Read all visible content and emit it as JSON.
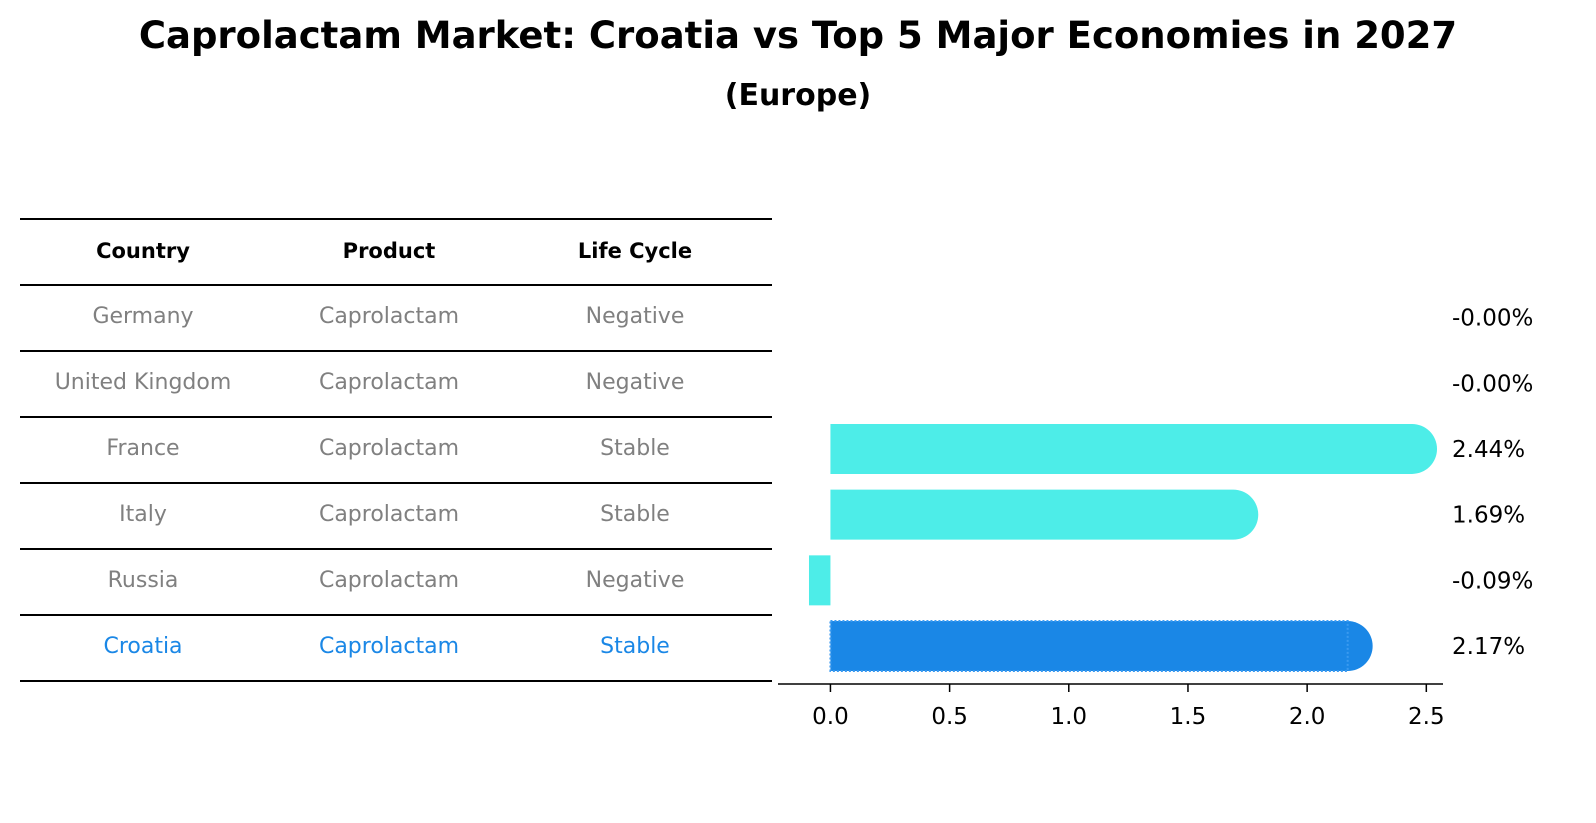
{
  "title": "Caprolactam Market: Croatia vs Top 5 Major Economies in 2027",
  "subtitle": "(Europe)",
  "table": {
    "headers": [
      "Country",
      "Product",
      "Life Cycle"
    ],
    "rows": [
      [
        "Germany",
        "Caprolactam",
        "Negative"
      ],
      [
        "United Kingdom",
        "Caprolactam",
        "Negative"
      ],
      [
        "France",
        "Caprolactam",
        "Stable"
      ],
      [
        "Italy",
        "Caprolactam",
        "Stable"
      ],
      [
        "Russia",
        "Caprolactam",
        "Negative"
      ],
      [
        "Croatia",
        "Caprolactam",
        "Stable"
      ]
    ],
    "highlight_row": 5,
    "text_color": "#808080",
    "highlight_color": "#1a87e6"
  },
  "chart_data": {
    "type": "bar",
    "orientation": "horizontal",
    "categories": [
      "Germany",
      "United Kingdom",
      "France",
      "Italy",
      "Russia",
      "Croatia"
    ],
    "values": [
      -0.0,
      -0.0,
      2.44,
      1.69,
      -0.09,
      2.17
    ],
    "value_labels": [
      "-0.00%",
      "-0.00%",
      "2.44%",
      "1.69%",
      "-0.09%",
      "2.17%"
    ],
    "xlim": [
      -0.22,
      2.57
    ],
    "xticks": [
      0.0,
      0.5,
      1.0,
      1.5,
      2.0,
      2.5
    ],
    "xtick_labels": [
      "0.0",
      "0.5",
      "1.0",
      "1.5",
      "2.0",
      "2.5"
    ],
    "bar_color": "#4dede8",
    "highlight_color": "#1a87e6",
    "highlight_index": 5,
    "grid": false,
    "legend": "none"
  }
}
